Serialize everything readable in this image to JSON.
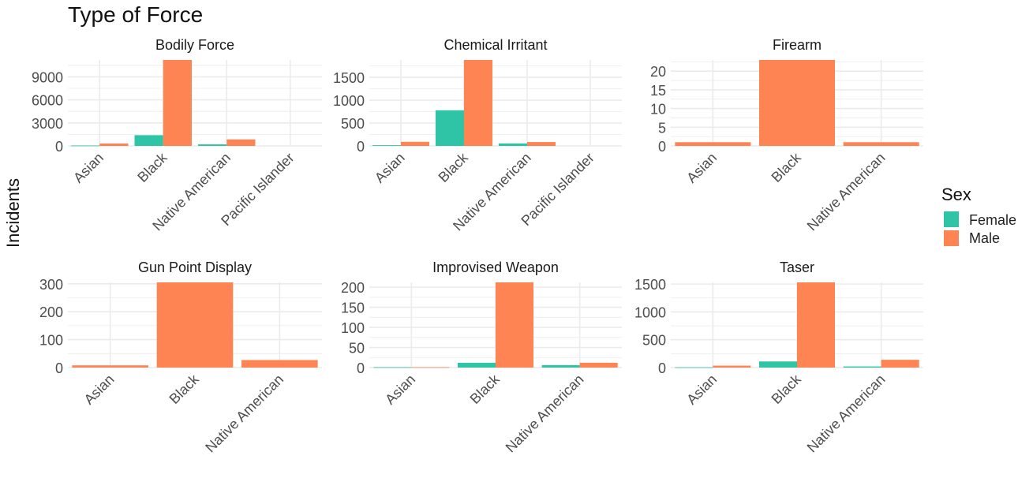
{
  "title": "Type of Force",
  "ylabel": "Incidents",
  "legend": {
    "title": "Sex",
    "items": [
      {
        "label": "Female",
        "color": "#2EC4A5"
      },
      {
        "label": "Male",
        "color": "#FF8454"
      }
    ]
  },
  "colors": {
    "grid": "#EBEBEB",
    "axis_text": "#4D4D4D"
  },
  "chart_data": [
    {
      "type": "bar",
      "title": "Bodily Force",
      "categories": [
        "Asian",
        "Black",
        "Native American",
        "Pacific Islander"
      ],
      "series": [
        {
          "name": "Female",
          "values": [
            50,
            1400,
            200,
            0
          ]
        },
        {
          "name": "Male",
          "values": [
            320,
            11200,
            850,
            0
          ]
        }
      ],
      "yticks": [
        0,
        3000,
        6000,
        9000
      ],
      "ylim": [
        0,
        11200
      ],
      "grid": true
    },
    {
      "type": "bar",
      "title": "Chemical Irritant",
      "categories": [
        "Asian",
        "Black",
        "Native American",
        "Pacific Islander"
      ],
      "series": [
        {
          "name": "Female",
          "values": [
            15,
            780,
            55,
            0
          ]
        },
        {
          "name": "Male",
          "values": [
            90,
            1880,
            85,
            0
          ]
        }
      ],
      "yticks": [
        0,
        500,
        1000,
        1500
      ],
      "ylim": [
        0,
        1880
      ],
      "grid": true
    },
    {
      "type": "bar",
      "title": "Firearm",
      "categories": [
        "Asian",
        "Black",
        "Native American"
      ],
      "series": [
        {
          "name": "Male",
          "values": [
            1,
            23,
            1
          ]
        }
      ],
      "yticks": [
        0,
        5,
        10,
        15,
        20
      ],
      "ylim": [
        0,
        23
      ],
      "grid": true
    },
    {
      "type": "bar",
      "title": "Gun Point Display",
      "categories": [
        "Asian",
        "Black",
        "Native American"
      ],
      "series": [
        {
          "name": "Male",
          "values": [
            8,
            305,
            27
          ]
        }
      ],
      "yticks": [
        0,
        100,
        200,
        300
      ],
      "ylim": [
        0,
        305
      ],
      "grid": true
    },
    {
      "type": "bar",
      "title": "Improvised Weapon",
      "categories": [
        "Asian",
        "Black",
        "Native American"
      ],
      "series": [
        {
          "name": "Female",
          "values": [
            1,
            12,
            6
          ]
        },
        {
          "name": "Male",
          "values": [
            1,
            212,
            12
          ]
        }
      ],
      "yticks": [
        0,
        50,
        100,
        150,
        200
      ],
      "ylim": [
        0,
        212
      ],
      "grid": true
    },
    {
      "type": "bar",
      "title": "Taser",
      "categories": [
        "Asian",
        "Black",
        "Native American"
      ],
      "series": [
        {
          "name": "Female",
          "values": [
            5,
            110,
            20
          ]
        },
        {
          "name": "Male",
          "values": [
            35,
            1530,
            140
          ]
        }
      ],
      "yticks": [
        0,
        500,
        1000,
        1500
      ],
      "ylim": [
        0,
        1530
      ],
      "grid": true
    }
  ]
}
